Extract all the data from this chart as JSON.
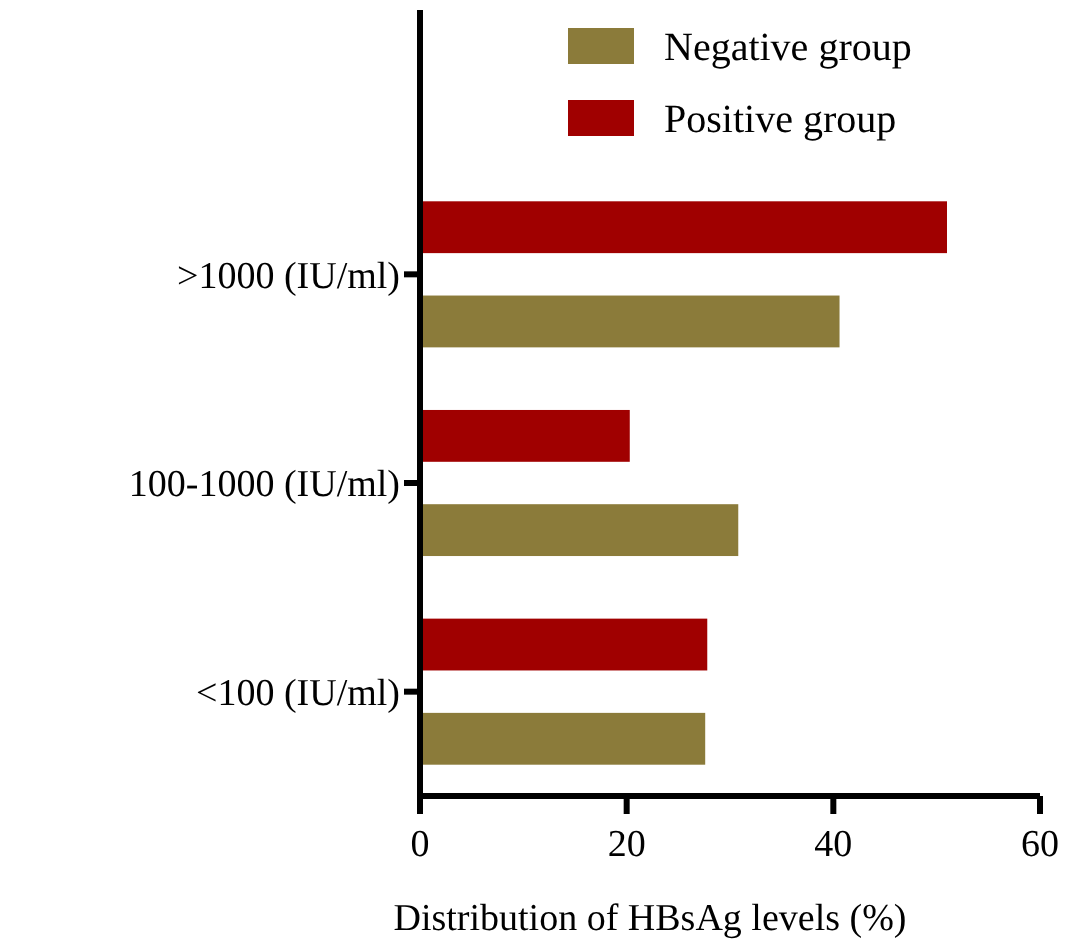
{
  "chart_data": {
    "type": "bar",
    "orientation": "horizontal",
    "xlabel": "Distribution of HBsAg levels (%)",
    "categories": [
      ">1000 (IU/ml)",
      "100-1000 (IU/ml)",
      "<100 (IU/ml)"
    ],
    "series": [
      {
        "name": "Negative group",
        "color": "#8b7b3a",
        "values": [
          40.6,
          30.8,
          27.6
        ]
      },
      {
        "name": "Positive group",
        "color": "#a00000",
        "values": [
          51.0,
          20.3,
          27.8
        ]
      }
    ],
    "xlim": [
      0,
      60
    ],
    "xticks": [
      0,
      20,
      40,
      60
    ],
    "legend": "top right",
    "grid": false
  }
}
